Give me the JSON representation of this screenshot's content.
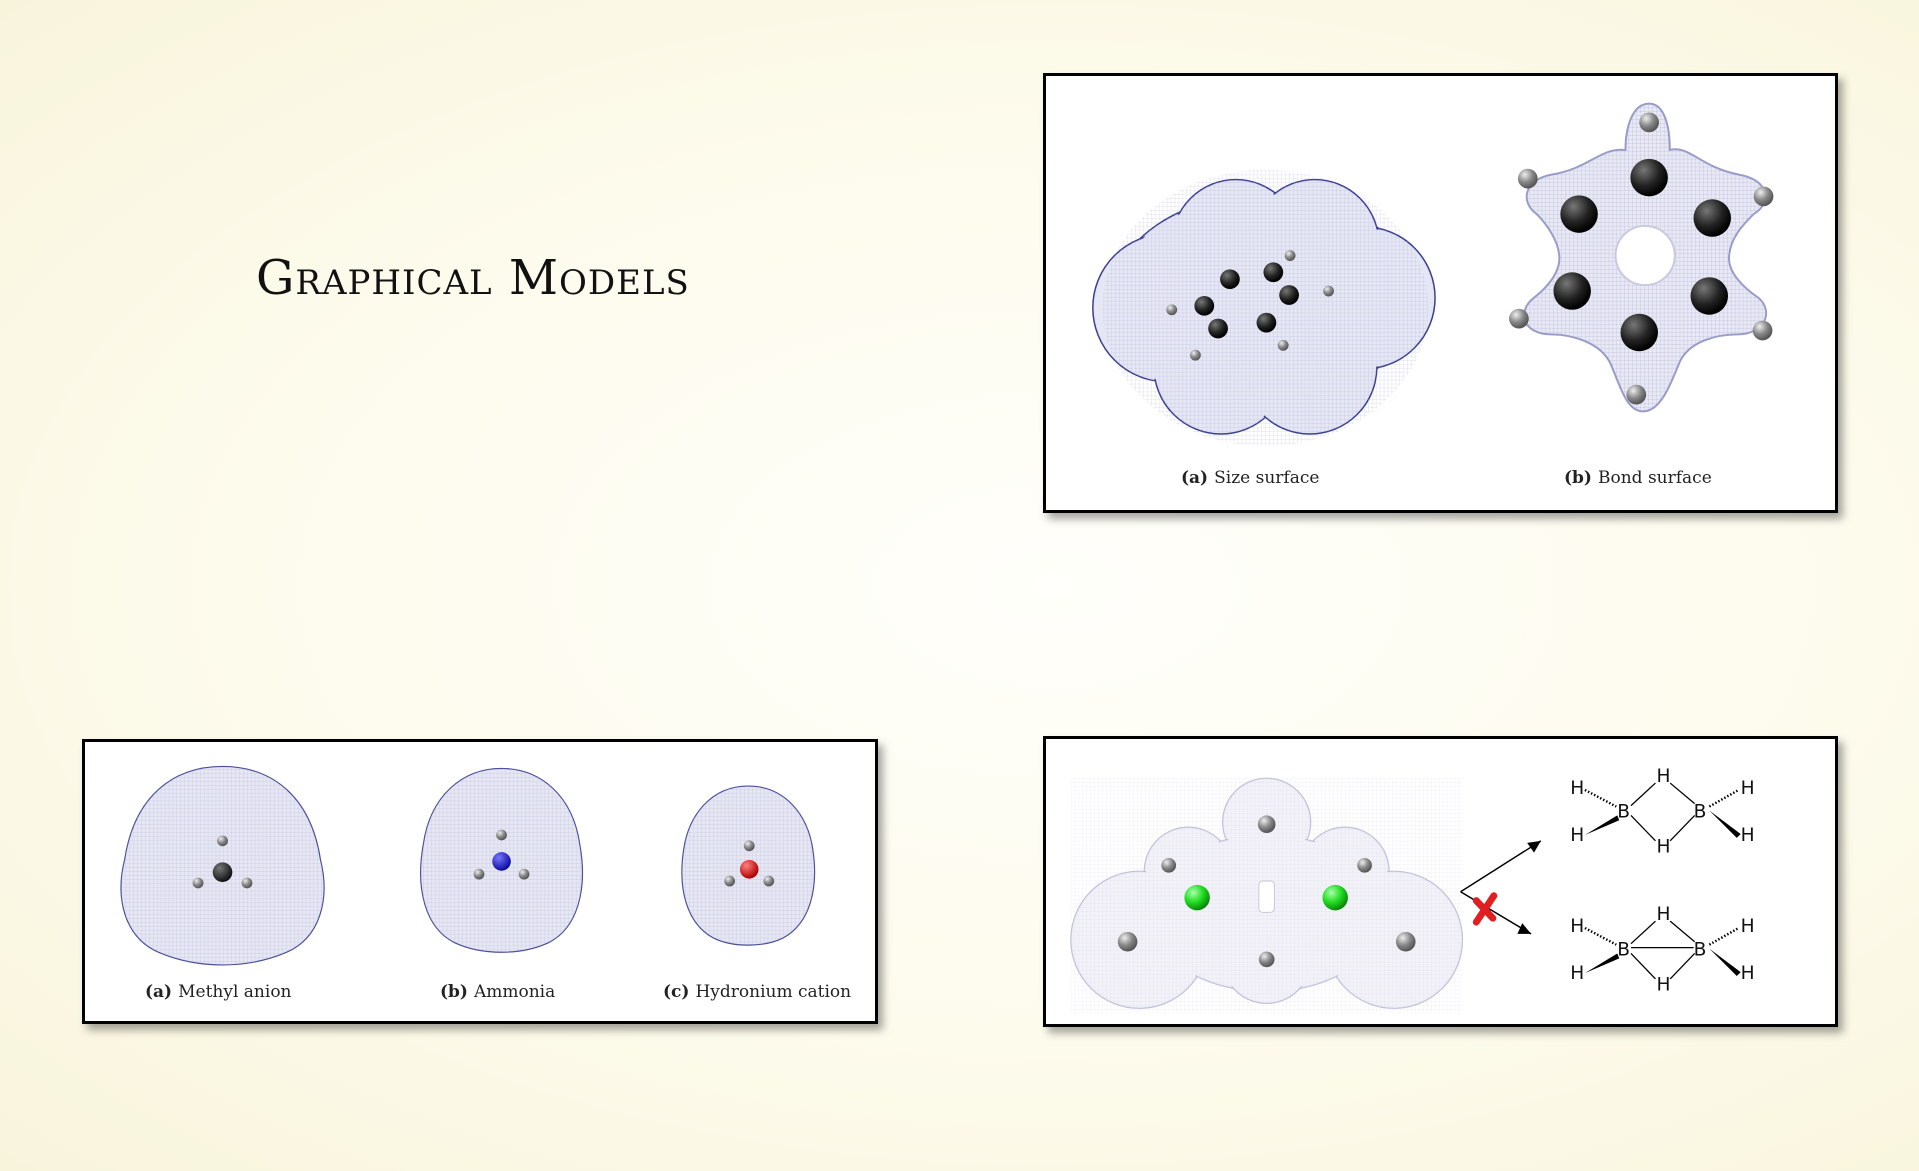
{
  "title": "Graphical Models",
  "benzene_panel": {
    "captions": [
      {
        "tag": "(a)",
        "text": "Size surface"
      },
      {
        "tag": "(b)",
        "text": "Bond surface"
      }
    ]
  },
  "small_molecules_panel": {
    "captions": [
      {
        "tag": "(a)",
        "text": "Methyl anion"
      },
      {
        "tag": "(b)",
        "text": "Ammonia"
      },
      {
        "tag": "(c)",
        "text": "Hydronium cation"
      }
    ],
    "colors": {
      "carbon": "#1a1a1a",
      "nitrogen": "#1a1ae0",
      "oxygen": "#e01515"
    }
  },
  "diborane_panel": {
    "atom_labels": {
      "hydrogen": "H",
      "boron": "B"
    },
    "colors": {
      "boron": "#22dd22",
      "cross": "#e02020"
    }
  }
}
